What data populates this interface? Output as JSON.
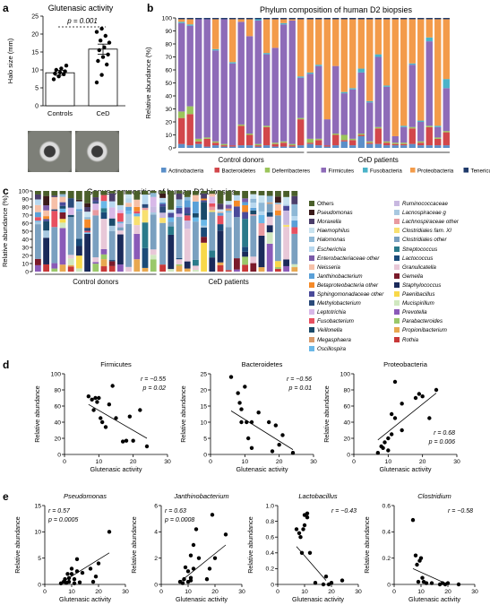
{
  "panel_labels": {
    "a": "a",
    "b": "b",
    "c": "c",
    "d": "d",
    "e": "e"
  },
  "chart_data": [
    {
      "type": "bar",
      "panel": "a",
      "title": "Glutenasic activity",
      "ylabel": "Halo size (mm)",
      "categories": [
        "Controls",
        "CeD"
      ],
      "values": [
        9.2,
        15.8
      ],
      "errors": [
        0.7,
        1.4
      ],
      "ylim": [
        0,
        25
      ],
      "yticks": [
        "0",
        "5",
        "10",
        "15",
        "20",
        "25"
      ],
      "points": {
        "Controls": [
          7.4,
          8.2,
          8.8,
          9.0,
          9.3,
          9.6,
          10.0,
          10.4,
          11.2
        ],
        "CeD": [
          6.5,
          8.6,
          11.5,
          12.5,
          13.6,
          14.3,
          15.5,
          16.3,
          17.6,
          18.2,
          19.5,
          20.6,
          21.5
        ]
      },
      "annotation": "p = 0.001"
    },
    {
      "type": "bar",
      "panel": "b",
      "title": "Phylum composition of human D2 biopsies",
      "ylabel": "Relative abundance (%)",
      "ylim": [
        0,
        100
      ],
      "yticks": [
        "0",
        "10",
        "20",
        "30",
        "40",
        "50",
        "60",
        "70",
        "80",
        "90",
        "100"
      ],
      "groups": [
        "Control donors",
        "CeD patients"
      ],
      "group_sizes": [
        15,
        17
      ],
      "series": [
        {
          "name": "Actinobacteria",
          "color": "#5b8fc9"
        },
        {
          "name": "Bacteroidetes",
          "color": "#d2474b"
        },
        {
          "name": "Deferribacteres",
          "color": "#9bc55b"
        },
        {
          "name": "Firmicutes",
          "color": "#8e6bb8"
        },
        {
          "name": "Fusobacteria",
          "color": "#4ab3c9"
        },
        {
          "name": "Proteobacteria",
          "color": "#f39b4a"
        },
        {
          "name": "Tenericutes",
          "color": "#1f3a6b"
        }
      ],
      "stacks": [
        [
          3,
          20,
          5,
          68,
          1,
          2,
          1
        ],
        [
          2,
          24,
          6,
          62,
          1,
          4,
          1
        ],
        [
          3,
          2,
          2,
          92,
          0,
          0,
          1
        ],
        [
          1,
          6,
          1,
          91,
          0,
          0,
          1
        ],
        [
          2,
          2,
          1,
          70,
          1,
          23,
          1
        ],
        [
          1,
          1,
          1,
          96,
          0,
          0,
          1
        ],
        [
          1,
          1,
          0,
          63,
          1,
          33,
          1
        ],
        [
          2,
          15,
          1,
          79,
          0,
          2,
          1
        ],
        [
          2,
          8,
          1,
          75,
          0,
          13,
          1
        ],
        [
          1,
          1,
          1,
          95,
          1,
          0,
          1
        ],
        [
          2,
          14,
          1,
          55,
          1,
          26,
          1
        ],
        [
          1,
          2,
          1,
          73,
          0,
          22,
          1
        ],
        [
          1,
          3,
          1,
          90,
          1,
          3,
          1
        ],
        [
          1,
          1,
          1,
          95,
          0,
          1,
          1
        ],
        [
          2,
          20,
          1,
          31,
          1,
          44,
          1
        ],
        [
          3,
          1,
          3,
          50,
          1,
          41,
          1
        ],
        [
          2,
          4,
          1,
          56,
          1,
          35,
          1
        ],
        [
          1,
          1,
          0,
          20,
          0,
          77,
          1
        ],
        [
          2,
          8,
          1,
          52,
          0,
          36,
          1
        ],
        [
          5,
          1,
          4,
          32,
          1,
          56,
          1
        ],
        [
          2,
          4,
          1,
          38,
          1,
          53,
          1
        ],
        [
          9,
          1,
          1,
          47,
          3,
          38,
          1
        ],
        [
          3,
          1,
          1,
          30,
          1,
          63,
          1
        ],
        [
          3,
          12,
          1,
          54,
          2,
          27,
          1
        ],
        [
          2,
          2,
          1,
          42,
          1,
          51,
          1
        ],
        [
          2,
          1,
          1,
          5,
          0,
          90,
          1
        ],
        [
          2,
          1,
          1,
          12,
          1,
          82,
          1
        ],
        [
          3,
          12,
          1,
          48,
          1,
          34,
          1
        ],
        [
          2,
          2,
          1,
          15,
          1,
          78,
          1
        ],
        [
          2,
          14,
          1,
          65,
          3,
          14,
          1
        ],
        [
          2,
          5,
          1,
          8,
          1,
          82,
          1
        ],
        [
          2,
          10,
          1,
          33,
          7,
          46,
          1
        ]
      ]
    },
    {
      "type": "bar",
      "panel": "c",
      "title": "Genus composition of human D2 biopsies",
      "ylabel": "Relative abundance (%)",
      "ylim": [
        0,
        100
      ],
      "yticks": [
        "0",
        "10",
        "20",
        "30",
        "40",
        "50",
        "60",
        "70",
        "80",
        "90",
        "100"
      ],
      "groups": [
        "Control donors",
        "CeD patients"
      ],
      "group_sizes": [
        15,
        17
      ],
      "legend_col1": [
        {
          "name": "Others",
          "color": "#4a5f2a"
        },
        {
          "name": "Pseudomonas",
          "color": "#3a1a1a"
        },
        {
          "name": "Moraxella",
          "color": "#4a3d6a"
        },
        {
          "name": "Haemophilus",
          "color": "#c8e3f0"
        },
        {
          "name": "Halomonas",
          "color": "#8eb8d6"
        },
        {
          "name": "Escherichia",
          "color": "#b8d8ef"
        },
        {
          "name": "Enterobacteriaceae other",
          "color": "#7a5aa8"
        },
        {
          "name": "Neisseria",
          "color": "#f6c0a8"
        },
        {
          "name": "Janthinobacterium",
          "color": "#5aa0d8"
        },
        {
          "name": "Betaproteobacteria other",
          "color": "#f58a28"
        },
        {
          "name": "Sphingomonadaceae other",
          "color": "#4a4a9a"
        },
        {
          "name": "Methylobacterium",
          "color": "#2a4a7a"
        },
        {
          "name": "Leptotrichia",
          "color": "#d8b8e8"
        },
        {
          "name": "Fusobacterium",
          "color": "#e85060"
        },
        {
          "name": "Veillonella",
          "color": "#1a4a6a"
        },
        {
          "name": "Megasphaera",
          "color": "#d89a6a"
        },
        {
          "name": "Oscillospira",
          "color": "#6ab8e8"
        }
      ],
      "legend_col2": [
        {
          "name": "Ruminococcaceae",
          "color": "#c8b8e0"
        },
        {
          "name": "Lacnospiraceae g",
          "color": "#a8c8e0"
        },
        {
          "name": "Lachnospiraceae other",
          "color": "#e89aa0"
        },
        {
          "name": "Clostridiales fam. XI",
          "color": "#f8e070"
        },
        {
          "name": "Clostridiales other",
          "color": "#7aa0c0"
        },
        {
          "name": "Streptococcus",
          "color": "#2a7a8a"
        },
        {
          "name": "Lactococcus",
          "color": "#1a4a78"
        },
        {
          "name": "Granulicatella",
          "color": "#e8c8d8"
        },
        {
          "name": "Gemella",
          "color": "#7a1a2a"
        },
        {
          "name": "Staphylococcus",
          "color": "#1a2a5a"
        },
        {
          "name": "Paenibacillus",
          "color": "#f8d84a"
        },
        {
          "name": "Mucispirillum",
          "color": "#d0e8c0"
        },
        {
          "name": "Prevotella",
          "color": "#8a5ab8"
        },
        {
          "name": "Parabacteroides",
          "color": "#9ac86a"
        },
        {
          "name": "Propionibacterium",
          "color": "#e8a850"
        },
        {
          "name": "Rothia",
          "color": "#c83838"
        }
      ]
    },
    {
      "type": "scatter",
      "panel": "d",
      "plots": [
        {
          "title": "Firmicutes",
          "xlabel": "Glutenasic activity",
          "ylabel": "Relative abundance",
          "xlim": [
            0,
            30
          ],
          "ylim": [
            0,
            100
          ],
          "xticks": [
            "0",
            "10",
            "20",
            "30"
          ],
          "yticks": [
            "0",
            "20",
            "40",
            "60",
            "80",
            "100"
          ],
          "r": "r = −0.55",
          "p": "p = 0.02",
          "stat_pos": "top-right",
          "x": [
            7,
            8,
            8.5,
            9,
            9.5,
            10,
            10.5,
            11,
            12,
            13,
            14,
            15,
            17,
            18,
            19,
            20,
            22,
            24
          ],
          "y": [
            72,
            68,
            55,
            70,
            65,
            70,
            45,
            40,
            34,
            62,
            85,
            45,
            16,
            17,
            47,
            17,
            55,
            10
          ],
          "line": [
            [
              7,
              62
            ],
            [
              24,
              20
            ]
          ]
        },
        {
          "title": "Bacteroidetes",
          "xlabel": "Glutenasic activity",
          "ylabel": "Relative abundance",
          "xlim": [
            0,
            30
          ],
          "ylim": [
            0,
            25
          ],
          "xticks": [
            "0",
            "10",
            "20",
            "30"
          ],
          "yticks": [
            "0",
            "5",
            "10",
            "15",
            "20",
            "25"
          ],
          "r": "r = −0.56",
          "p": "p = 0.01",
          "stat_pos": "top-right",
          "x": [
            6,
            8,
            8.5,
            9,
            9,
            10,
            10.5,
            11,
            12,
            12,
            14,
            17,
            18,
            19,
            20,
            21,
            24
          ],
          "y": [
            24,
            19,
            16,
            14,
            10,
            21,
            10,
            5,
            2,
            10,
            13,
            10,
            1,
            9,
            3,
            6,
            0.5
          ],
          "line": [
            [
              6,
              13.5
            ],
            [
              24,
              1.5
            ]
          ]
        },
        {
          "title": "Proteobacteria",
          "xlabel": "Glutenasic activity",
          "ylabel": "Relative abundance",
          "xlim": [
            0,
            30
          ],
          "ylim": [
            0,
            100
          ],
          "xticks": [
            "0",
            "10",
            "20",
            "30"
          ],
          "yticks": [
            "0",
            "20",
            "40",
            "60",
            "80",
            "100"
          ],
          "r": "r = 0.68",
          "p": "p = 0.006",
          "stat_pos": "bottom-right",
          "x": [
            7,
            8,
            8.5,
            9,
            10,
            10,
            11,
            11,
            12,
            12,
            14,
            14,
            18,
            19,
            20,
            22,
            24
          ],
          "y": [
            2,
            10,
            8,
            15,
            5,
            20,
            25,
            50,
            45,
            90,
            30,
            63,
            70,
            75,
            72,
            45,
            80
          ],
          "line": [
            [
              7,
              18
            ],
            [
              24,
              76
            ]
          ]
        }
      ]
    },
    {
      "type": "scatter",
      "panel": "e",
      "plots": [
        {
          "title": "Pseudomonas",
          "xlabel": "Glutenasic activity",
          "ylabel": "Relative abundance",
          "xlim": [
            0,
            30
          ],
          "ylim": [
            0,
            15
          ],
          "xticks": [
            "0",
            "10",
            "20",
            "30"
          ],
          "yticks": [
            "0",
            "5",
            "10",
            "15"
          ],
          "r": "r = 0.57",
          "p": "p = 0.0005",
          "stat_pos": "top-left",
          "x": [
            6,
            7,
            7.5,
            8,
            8.5,
            9,
            9,
            10,
            10,
            11,
            11,
            12,
            12,
            13,
            14,
            17,
            18,
            19,
            20,
            24
          ],
          "y": [
            0.2,
            0.5,
            1,
            0.3,
            2,
            1.2,
            0.5,
            3,
            2,
            0.2,
            1,
            4.8,
            2.5,
            0.4,
            2.2,
            3,
            0.5,
            1.5,
            4,
            10
          ],
          "line": [
            [
              6,
              0.3
            ],
            [
              24,
              6
            ]
          ]
        },
        {
          "title": "Janthinobacterium",
          "xlabel": "Glutenasic activity",
          "ylabel": "Relative abundance",
          "xlim": [
            0,
            30
          ],
          "ylim": [
            0,
            6
          ],
          "xticks": [
            "0",
            "10",
            "20",
            "30"
          ],
          "yticks": [
            "0",
            "2",
            "4",
            "6"
          ],
          "r": "r = 0.63",
          "p": "p = 0.0008",
          "stat_pos": "top-left",
          "x": [
            7,
            8,
            8.5,
            9,
            10,
            10,
            11,
            11,
            11,
            12,
            12,
            13,
            14,
            17,
            18,
            19,
            20,
            24
          ],
          "y": [
            0.2,
            0.1,
            0.4,
            1.3,
            0.2,
            1,
            0.5,
            0.3,
            2.2,
            1.2,
            3,
            4.2,
            2,
            0.4,
            1.2,
            5.3,
            2,
            3.8
          ],
          "line": [
            [
              7,
              0.2
            ],
            [
              24,
              3
            ]
          ]
        },
        {
          "title": "Lactobacillus",
          "xlabel": "Glutenasic activity",
          "ylabel": "Relative abundance",
          "xlim": [
            0,
            30
          ],
          "ylim": [
            0,
            1.0
          ],
          "xticks": [
            "0",
            "10",
            "20",
            "30"
          ],
          "yticks": [
            "0",
            "0.2",
            "0.4",
            "0.6",
            "0.8",
            "1.0"
          ],
          "r": "r = −0.43",
          "p": "",
          "stat_pos": "top-right",
          "x": [
            7,
            8,
            8.5,
            9,
            9.5,
            10,
            10,
            11,
            11,
            12,
            14,
            17,
            18,
            19,
            20,
            24
          ],
          "y": [
            0.7,
            0.65,
            0.6,
            0.4,
            0.7,
            0.75,
            0.88,
            0.9,
            0.85,
            0.4,
            0.02,
            0,
            0.1,
            0,
            0.02,
            0.05
          ],
          "line": [
            [
              7,
              0.48
            ],
            [
              18,
              0.05
            ]
          ]
        },
        {
          "title": "Clostridium",
          "xlabel": "Glutenasic activity",
          "ylabel": "Relative abundance",
          "xlim": [
            0,
            30
          ],
          "ylim": [
            0,
            0.6
          ],
          "xticks": [
            "0",
            "10",
            "20",
            "30"
          ],
          "yticks": [
            "0",
            "0.2",
            "0.4",
            "0.6"
          ],
          "r": "r = −0.58",
          "p": "",
          "stat_pos": "top-right",
          "x": [
            7,
            8,
            8.5,
            9,
            9.5,
            10,
            10.5,
            11,
            12,
            14,
            17,
            18,
            19,
            20,
            24
          ],
          "y": [
            0.49,
            0.22,
            0.15,
            0.02,
            0.18,
            0.2,
            0.05,
            0.02,
            0.01,
            0.01,
            0,
            0.01,
            0,
            0.01,
            0
          ],
          "line": [
            [
              7,
              0.12
            ],
            [
              20,
              0
            ]
          ]
        }
      ]
    }
  ]
}
